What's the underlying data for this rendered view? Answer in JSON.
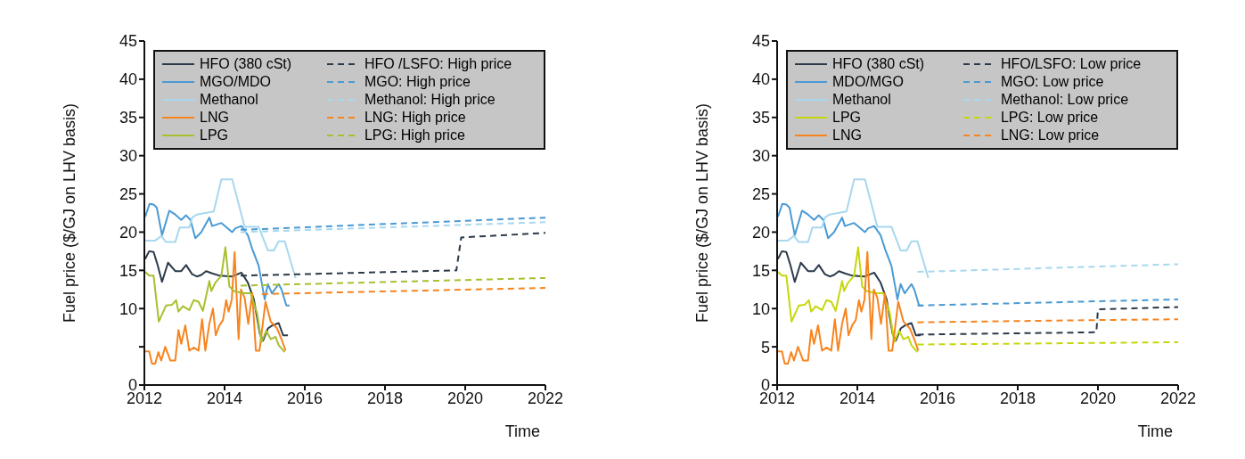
{
  "chart_data": [
    {
      "type": "line",
      "xlabel": "Time",
      "ylabel": "Fuel price ($/GJ on LHV basis)",
      "xlim": [
        2012,
        2022
      ],
      "xticks": [
        2012,
        2014,
        2016,
        2018,
        2020,
        2022
      ],
      "ylim": [
        0,
        45
      ],
      "yticks": [
        0,
        {
          "value": 5,
          "label": null
        },
        10,
        15,
        20,
        25,
        30,
        35,
        40,
        45
      ],
      "legend": "top",
      "marker": "none",
      "grid": false,
      "series": [
        {
          "name": "HFO (380 cSt)",
          "color": "#2b3a4a",
          "line_style": "solid",
          "x": [
            2012.02,
            2012.12,
            2012.23,
            2012.33,
            2012.44,
            2012.59,
            2012.77,
            2012.92,
            2013.04,
            2013.19,
            2013.31,
            2013.42,
            2013.54,
            2013.69,
            2013.88,
            2014.19,
            2014.42,
            2014.58,
            2014.73,
            2014.88,
            2014.96,
            2015.08,
            2015.19,
            2015.35,
            2015.46,
            2015.58
          ],
          "values": [
            16.5,
            17.5,
            17.4,
            15.7,
            13.5,
            16.0,
            14.9,
            14.9,
            15.7,
            14.5,
            14.2,
            14.4,
            14.9,
            14.6,
            14.3,
            14.2,
            14.7,
            13.4,
            11.2,
            6.7,
            5.8,
            7.4,
            7.8,
            8.1,
            6.5,
            6.5
          ]
        },
        {
          "name": "MGO/MDO",
          "color": "#4a9ad4",
          "line_style": "solid",
          "x": [
            2012.02,
            2012.13,
            2012.23,
            2012.31,
            2012.44,
            2012.62,
            2012.77,
            2012.92,
            2013.04,
            2013.15,
            2013.27,
            2013.42,
            2013.62,
            2013.69,
            2013.92,
            2014.19,
            2014.27,
            2014.42,
            2014.58,
            2014.69,
            2014.85,
            2015.0,
            2015.08,
            2015.18,
            2015.35,
            2015.42,
            2015.54,
            2015.62
          ],
          "values": [
            22.0,
            23.7,
            23.6,
            23.2,
            19.6,
            22.8,
            22.3,
            21.6,
            22.2,
            21.6,
            19.2,
            20.0,
            21.9,
            20.8,
            21.2,
            20.0,
            20.5,
            20.8,
            19.6,
            17.8,
            15.6,
            11.2,
            13.2,
            12.0,
            13.2,
            12.5,
            10.4,
            10.4
          ]
        },
        {
          "name": "Methanol",
          "color": "#a8d8ee",
          "line_style": "solid",
          "x": [
            2012.02,
            2012.27,
            2012.42,
            2012.54,
            2012.77,
            2012.88,
            2013.12,
            2013.19,
            2013.31,
            2013.73,
            2013.92,
            2014.19,
            2014.5,
            2014.85,
            2015.08,
            2015.23,
            2015.35,
            2015.5,
            2015.77
          ],
          "values": [
            18.9,
            18.9,
            19.5,
            18.7,
            18.7,
            20.6,
            20.6,
            21.9,
            22.3,
            22.7,
            26.9,
            26.9,
            20.7,
            20.7,
            17.6,
            17.6,
            18.8,
            18.8,
            14.0
          ]
        },
        {
          "name": "LNG",
          "color": "#f7841e",
          "line_style": "solid",
          "x": [
            2012.02,
            2012.12,
            2012.19,
            2012.27,
            2012.35,
            2012.42,
            2012.52,
            2012.65,
            2012.77,
            2012.85,
            2012.92,
            2013.02,
            2013.12,
            2013.23,
            2013.35,
            2013.44,
            2013.52,
            2013.62,
            2013.71,
            2013.78,
            2013.87,
            2013.96,
            2014.04,
            2014.1,
            2014.18,
            2014.25,
            2014.35,
            2014.41,
            2014.5,
            2014.59,
            2014.69,
            2014.78,
            2014.87,
            2015.02,
            2015.15,
            2015.31,
            2015.42,
            2015.52
          ],
          "values": [
            4.4,
            4.4,
            2.8,
            2.8,
            4.3,
            3.2,
            5.0,
            3.2,
            3.2,
            7.2,
            5.4,
            7.8,
            4.5,
            4.9,
            4.5,
            8.6,
            4.5,
            8.0,
            10.0,
            6.5,
            7.8,
            8.5,
            11.1,
            9.6,
            11.2,
            17.4,
            6.0,
            12.5,
            11.4,
            8.0,
            12.0,
            4.5,
            4.5,
            10.9,
            8.3,
            7.4,
            6.0,
            4.5
          ]
        },
        {
          "name": "LPG",
          "color": "#a9bf2e",
          "line_style": "solid",
          "x": [
            2012.02,
            2012.12,
            2012.23,
            2012.36,
            2012.54,
            2012.69,
            2012.79,
            2012.85,
            2012.96,
            2013.12,
            2013.23,
            2013.35,
            2013.46,
            2013.62,
            2013.67,
            2013.77,
            2013.92,
            2014.02,
            2014.12,
            2014.23,
            2014.46,
            2014.65,
            2014.81,
            2014.92,
            2015.04,
            2015.15,
            2015.27,
            2015.35,
            2015.5
          ],
          "values": [
            14.8,
            14.3,
            14.3,
            8.3,
            10.4,
            10.5,
            11.1,
            9.6,
            10.3,
            9.8,
            11.1,
            10.9,
            9.7,
            13.6,
            12.3,
            13.4,
            14.3,
            18.0,
            12.9,
            12.3,
            12.0,
            12.0,
            9.4,
            5.6,
            7.1,
            6.0,
            6.3,
            5.2,
            4.3
          ]
        },
        {
          "name": "HFO /LSFO: High price",
          "color": "#2b3a4a",
          "line_style": "dashed",
          "x": [
            2014.4,
            2019.78,
            2019.9,
            2022
          ],
          "values": [
            14.3,
            15.0,
            19.3,
            19.9
          ]
        },
        {
          "name": "MGO: High price",
          "color": "#4a9ad4",
          "line_style": "dashed",
          "x": [
            2014.4,
            2022
          ],
          "values": [
            20.3,
            21.9
          ]
        },
        {
          "name": "Methanol: High price",
          "color": "#a8d8ee",
          "line_style": "dashed",
          "x": [
            2014.4,
            2022
          ],
          "values": [
            20.0,
            21.3
          ]
        },
        {
          "name": "LNG: High price",
          "color": "#f7841e",
          "line_style": "dashed",
          "x": [
            2014.93,
            2022
          ],
          "values": [
            11.9,
            12.7
          ]
        },
        {
          "name": "LPG: High price",
          "color": "#a9bf2e",
          "line_style": "dashed",
          "x": [
            2014.4,
            2022
          ],
          "values": [
            13.0,
            14.0
          ]
        }
      ]
    },
    {
      "type": "line",
      "xlabel": "Time",
      "ylabel": "Fuel price ($/GJ on LHV basis)",
      "xlim": [
        2012,
        2022
      ],
      "xticks": [
        2012,
        2014,
        2016,
        2018,
        2020,
        2022
      ],
      "ylim": [
        0,
        45
      ],
      "yticks": [
        0,
        5,
        10,
        15,
        20,
        25,
        30,
        35,
        40,
        45
      ],
      "legend": "top",
      "marker": "none",
      "grid": false,
      "series": [
        {
          "name": "HFO (380 cSt)",
          "color": "#2b3a4a",
          "line_style": "solid",
          "x": [
            2012.02,
            2012.12,
            2012.23,
            2012.33,
            2012.44,
            2012.59,
            2012.77,
            2012.92,
            2013.04,
            2013.19,
            2013.31,
            2013.42,
            2013.54,
            2013.69,
            2013.88,
            2014.19,
            2014.42,
            2014.58,
            2014.73,
            2014.88,
            2014.96,
            2015.08,
            2015.19,
            2015.35,
            2015.46,
            2015.58
          ],
          "values": [
            16.5,
            17.5,
            17.4,
            15.7,
            13.5,
            16.0,
            14.9,
            14.9,
            15.7,
            14.5,
            14.2,
            14.4,
            14.9,
            14.6,
            14.3,
            14.2,
            14.7,
            13.4,
            11.2,
            6.7,
            5.8,
            7.4,
            7.8,
            8.1,
            6.5,
            6.5
          ]
        },
        {
          "name": "MDO/MGO",
          "color": "#4a9ad4",
          "line_style": "solid",
          "x": [
            2012.02,
            2012.13,
            2012.23,
            2012.31,
            2012.44,
            2012.62,
            2012.77,
            2012.92,
            2013.04,
            2013.15,
            2013.27,
            2013.42,
            2013.62,
            2013.69,
            2013.92,
            2014.19,
            2014.27,
            2014.42,
            2014.58,
            2014.69,
            2014.85,
            2015.0,
            2015.08,
            2015.18,
            2015.35,
            2015.42,
            2015.54,
            2015.62
          ],
          "values": [
            22.0,
            23.7,
            23.6,
            23.2,
            19.6,
            22.8,
            22.3,
            21.6,
            22.2,
            21.6,
            19.2,
            20.0,
            21.9,
            20.8,
            21.2,
            20.0,
            20.5,
            20.8,
            19.6,
            17.8,
            15.6,
            11.2,
            13.2,
            12.0,
            13.2,
            12.5,
            10.4,
            10.4
          ]
        },
        {
          "name": "Methanol",
          "color": "#a8d8ee",
          "line_style": "solid",
          "x": [
            2012.02,
            2012.27,
            2012.42,
            2012.54,
            2012.77,
            2012.88,
            2013.12,
            2013.19,
            2013.31,
            2013.73,
            2013.92,
            2014.19,
            2014.5,
            2014.85,
            2015.08,
            2015.23,
            2015.35,
            2015.5,
            2015.77
          ],
          "values": [
            18.9,
            18.9,
            19.5,
            18.7,
            18.7,
            20.6,
            20.6,
            21.9,
            22.3,
            22.7,
            26.9,
            26.9,
            20.7,
            20.7,
            17.6,
            17.6,
            18.8,
            18.8,
            14.0
          ]
        },
        {
          "name": "LPG",
          "color": "#c5d70a",
          "line_style": "solid",
          "x": [
            2012.02,
            2012.12,
            2012.23,
            2012.36,
            2012.54,
            2012.69,
            2012.79,
            2012.85,
            2012.96,
            2013.12,
            2013.23,
            2013.35,
            2013.46,
            2013.62,
            2013.67,
            2013.77,
            2013.92,
            2014.02,
            2014.12,
            2014.23,
            2014.46,
            2014.65,
            2014.81,
            2014.92,
            2015.04,
            2015.15,
            2015.27,
            2015.35,
            2015.5
          ],
          "values": [
            14.8,
            14.3,
            14.3,
            8.3,
            10.4,
            10.5,
            11.1,
            9.6,
            10.3,
            9.8,
            11.1,
            10.9,
            9.7,
            13.6,
            12.3,
            13.4,
            14.3,
            18.0,
            12.9,
            12.3,
            12.0,
            12.0,
            9.4,
            5.6,
            7.1,
            6.0,
            6.3,
            5.2,
            4.3
          ]
        },
        {
          "name": "LNG",
          "color": "#f7841e",
          "line_style": "solid",
          "x": [
            2012.02,
            2012.12,
            2012.19,
            2012.27,
            2012.35,
            2012.42,
            2012.52,
            2012.65,
            2012.77,
            2012.85,
            2012.92,
            2013.02,
            2013.12,
            2013.23,
            2013.35,
            2013.44,
            2013.52,
            2013.62,
            2013.71,
            2013.78,
            2013.87,
            2013.96,
            2014.04,
            2014.1,
            2014.18,
            2014.25,
            2014.35,
            2014.41,
            2014.5,
            2014.59,
            2014.69,
            2014.78,
            2014.87,
            2015.02,
            2015.15,
            2015.31,
            2015.42,
            2015.52
          ],
          "values": [
            4.4,
            4.4,
            2.8,
            2.8,
            4.3,
            3.2,
            5.0,
            3.2,
            3.2,
            7.2,
            5.4,
            7.8,
            4.5,
            4.9,
            4.5,
            8.6,
            4.5,
            8.0,
            10.0,
            6.5,
            7.8,
            8.5,
            11.1,
            9.6,
            11.2,
            17.4,
            6.0,
            12.5,
            11.4,
            8.0,
            12.0,
            4.5,
            4.5,
            10.9,
            8.3,
            7.4,
            6.0,
            4.5
          ]
        },
        {
          "name": "HFO/LSFO: Low price",
          "color": "#2b3a4a",
          "line_style": "dashed",
          "x": [
            2015.5,
            2019.96,
            2020,
            2022
          ],
          "values": [
            6.6,
            6.9,
            9.9,
            10.2
          ]
        },
        {
          "name": "MGO: Low price",
          "color": "#4a9ad4",
          "line_style": "dashed",
          "x": [
            2015.5,
            2022
          ],
          "values": [
            10.4,
            11.2
          ]
        },
        {
          "name": "Methanol: Low price",
          "color": "#a8d8ee",
          "line_style": "dashed",
          "x": [
            2015.5,
            2022
          ],
          "values": [
            14.8,
            15.8
          ]
        },
        {
          "name": "LPG: Low price",
          "color": "#c5d70a",
          "line_style": "dashed",
          "x": [
            2015.5,
            2022
          ],
          "values": [
            5.3,
            5.6
          ]
        },
        {
          "name": "LNG: Low price",
          "color": "#f7841e",
          "line_style": "dashed",
          "x": [
            2015.5,
            2020,
            2022
          ],
          "values": [
            8.2,
            8.5,
            8.6
          ]
        }
      ]
    }
  ]
}
